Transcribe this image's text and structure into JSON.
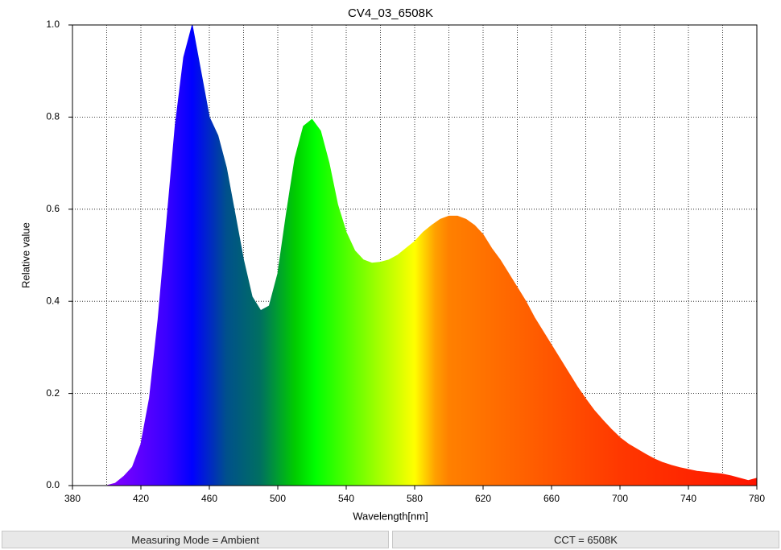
{
  "chart_data": {
    "type": "area",
    "title": "CV4_03_6508K",
    "x_label": "Wavelength[nm]",
    "y_label": "Relative value",
    "x": [
      380,
      385,
      390,
      395,
      400,
      405,
      410,
      415,
      420,
      425,
      430,
      435,
      440,
      445,
      450,
      455,
      460,
      465,
      470,
      475,
      480,
      485,
      490,
      495,
      500,
      505,
      510,
      515,
      520,
      525,
      530,
      535,
      540,
      545,
      550,
      555,
      560,
      565,
      570,
      575,
      580,
      585,
      590,
      595,
      600,
      605,
      610,
      615,
      620,
      625,
      630,
      635,
      640,
      645,
      650,
      655,
      660,
      665,
      670,
      675,
      680,
      685,
      690,
      695,
      700,
      705,
      710,
      715,
      720,
      725,
      730,
      735,
      740,
      745,
      750,
      755,
      760,
      765,
      770,
      775,
      780
    ],
    "values": [
      0,
      0,
      0,
      0,
      0,
      0.005,
      0.02,
      0.04,
      0.09,
      0.19,
      0.36,
      0.57,
      0.78,
      0.93,
      1.0,
      0.9,
      0.8,
      0.76,
      0.69,
      0.59,
      0.49,
      0.41,
      0.38,
      0.39,
      0.46,
      0.59,
      0.71,
      0.78,
      0.795,
      0.77,
      0.7,
      0.61,
      0.55,
      0.51,
      0.49,
      0.483,
      0.485,
      0.49,
      0.5,
      0.515,
      0.53,
      0.55,
      0.565,
      0.578,
      0.585,
      0.585,
      0.578,
      0.565,
      0.545,
      0.515,
      0.49,
      0.46,
      0.43,
      0.4,
      0.365,
      0.335,
      0.305,
      0.275,
      0.245,
      0.215,
      0.188,
      0.163,
      0.142,
      0.122,
      0.104,
      0.09,
      0.079,
      0.068,
      0.058,
      0.05,
      0.044,
      0.039,
      0.035,
      0.031,
      0.029,
      0.027,
      0.025,
      0.021,
      0.016,
      0.011,
      0.016
    ],
    "color_stops": [
      {
        "x": 400,
        "color": "#8a00ff"
      },
      {
        "x": 435,
        "color": "#3a00ff"
      },
      {
        "x": 450,
        "color": "#0000ff"
      },
      {
        "x": 470,
        "color": "#00508c"
      },
      {
        "x": 490,
        "color": "#007060"
      },
      {
        "x": 510,
        "color": "#00cc00"
      },
      {
        "x": 522,
        "color": "#00ff00"
      },
      {
        "x": 560,
        "color": "#a8ff00"
      },
      {
        "x": 580,
        "color": "#ffff00"
      },
      {
        "x": 592,
        "color": "#ffa000"
      },
      {
        "x": 600,
        "color": "#ff8000"
      },
      {
        "x": 640,
        "color": "#ff6400"
      },
      {
        "x": 700,
        "color": "#ff3800"
      },
      {
        "x": 780,
        "color": "#ff1400"
      }
    ],
    "xlim": [
      380,
      780
    ],
    "xticks": [
      380,
      420,
      460,
      500,
      540,
      580,
      620,
      660,
      700,
      740,
      780
    ],
    "xminor": [
      400,
      440,
      480,
      520,
      560,
      600,
      640,
      680,
      720,
      760
    ],
    "ylim": [
      0,
      1.0
    ],
    "yticks": [
      {
        "value": 0,
        "label": "0.0"
      },
      0.2,
      0.4,
      0.6,
      0.8,
      {
        "value": 1.0,
        "label": "1.0"
      }
    ],
    "grid": true
  },
  "status_bar": [
    "Measuring Mode = Ambient",
    "CCT = 6508K"
  ]
}
